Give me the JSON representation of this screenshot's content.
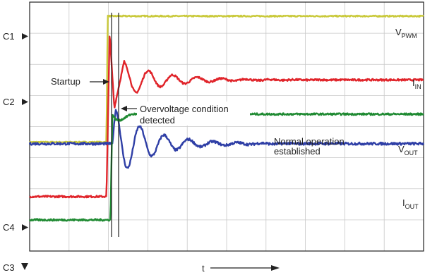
{
  "colors": {
    "grid": "#c8c8c8",
    "frame": "#222222",
    "vpwm": "#c9c93a",
    "iin": "#e0242a",
    "vout": "#2f3fa6",
    "iout": "#1f8a32"
  },
  "channels": [
    {
      "id": "ch1",
      "label": "C1",
      "color_key": "vpwm"
    },
    {
      "id": "ch2",
      "label": "C2",
      "color_key": "iin"
    },
    {
      "id": "ch4",
      "label": "C4",
      "color_key": "iout"
    },
    {
      "id": "ch3",
      "label": "C3",
      "color_key": "vout"
    }
  ],
  "annotations": {
    "startup": "Startup",
    "overvoltage_line1": "Overvoltage condition",
    "overvoltage_line2": "detected",
    "normal_line1": "Normal operation",
    "normal_line2": "established",
    "t_label": "t"
  },
  "chart_data": {
    "type": "line",
    "grid": true,
    "grid_divisions": {
      "x": 10,
      "y": 8
    },
    "series": [
      {
        "key": "vpwm",
        "name": "VPWM",
        "name_main": "V",
        "name_sub": "PWM",
        "pre_level": 3.5,
        "post_level": 7.55,
        "step_div": 1.95,
        "transient": "none",
        "noise": 0.02
      },
      {
        "key": "iin",
        "name": "IIN",
        "name_main": "I",
        "name_sub": "IN",
        "pre_level": 1.75,
        "post_level": 5.5,
        "step_div": 1.95,
        "transient": "spike_then_oscillate",
        "noise": 0.03
      },
      {
        "key": "vout",
        "name": "VOUT",
        "name_main": "V",
        "name_sub": "OUT",
        "pre_level": 3.45,
        "post_level": 3.45,
        "step_div": 2.1,
        "transient": "damped_oscillation",
        "noise": 0.04
      },
      {
        "key": "iout",
        "name": "IOUT",
        "name_main": "I",
        "name_sub": "OUT",
        "pre_level": 1.0,
        "post_level": 4.4,
        "step_div": 2.05,
        "transient": "step_with_dip",
        "noise": 0.03
      }
    ]
  }
}
